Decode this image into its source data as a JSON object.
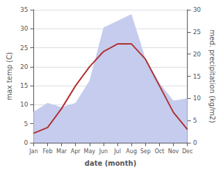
{
  "chart_data": {
    "type": "line",
    "xlabel": "date (month)",
    "ylabel": "max temp (C)",
    "y2label": "med. precipitation (kg/m2)",
    "categories": [
      "Jan",
      "Feb",
      "Mar",
      "Apr",
      "May",
      "Jun",
      "Jul",
      "Aug",
      "Sep",
      "Oct",
      "Nov",
      "Dec"
    ],
    "series": [
      {
        "type": "area",
        "axis": "y2",
        "color": "#c5ccee",
        "values": [
          7.0,
          9.0,
          8.0,
          9.0,
          14.0,
          26.0,
          27.5,
          29.0,
          19.0,
          13.5,
          9.5,
          10.0
        ]
      },
      {
        "type": "line",
        "color": "#b03030",
        "values": [
          2.5,
          4.0,
          9.0,
          15.0,
          20.0,
          24.0,
          26.0,
          26.0,
          22.0,
          15.0,
          8.0,
          3.5
        ]
      }
    ],
    "ylim": [
      0,
      35
    ],
    "yticks": [
      0,
      5,
      10,
      15,
      20,
      25,
      30,
      35
    ],
    "y2lim": [
      0,
      30
    ],
    "y2ticks": [
      0,
      5,
      10,
      15,
      20,
      25,
      30
    ],
    "grid": true
  }
}
